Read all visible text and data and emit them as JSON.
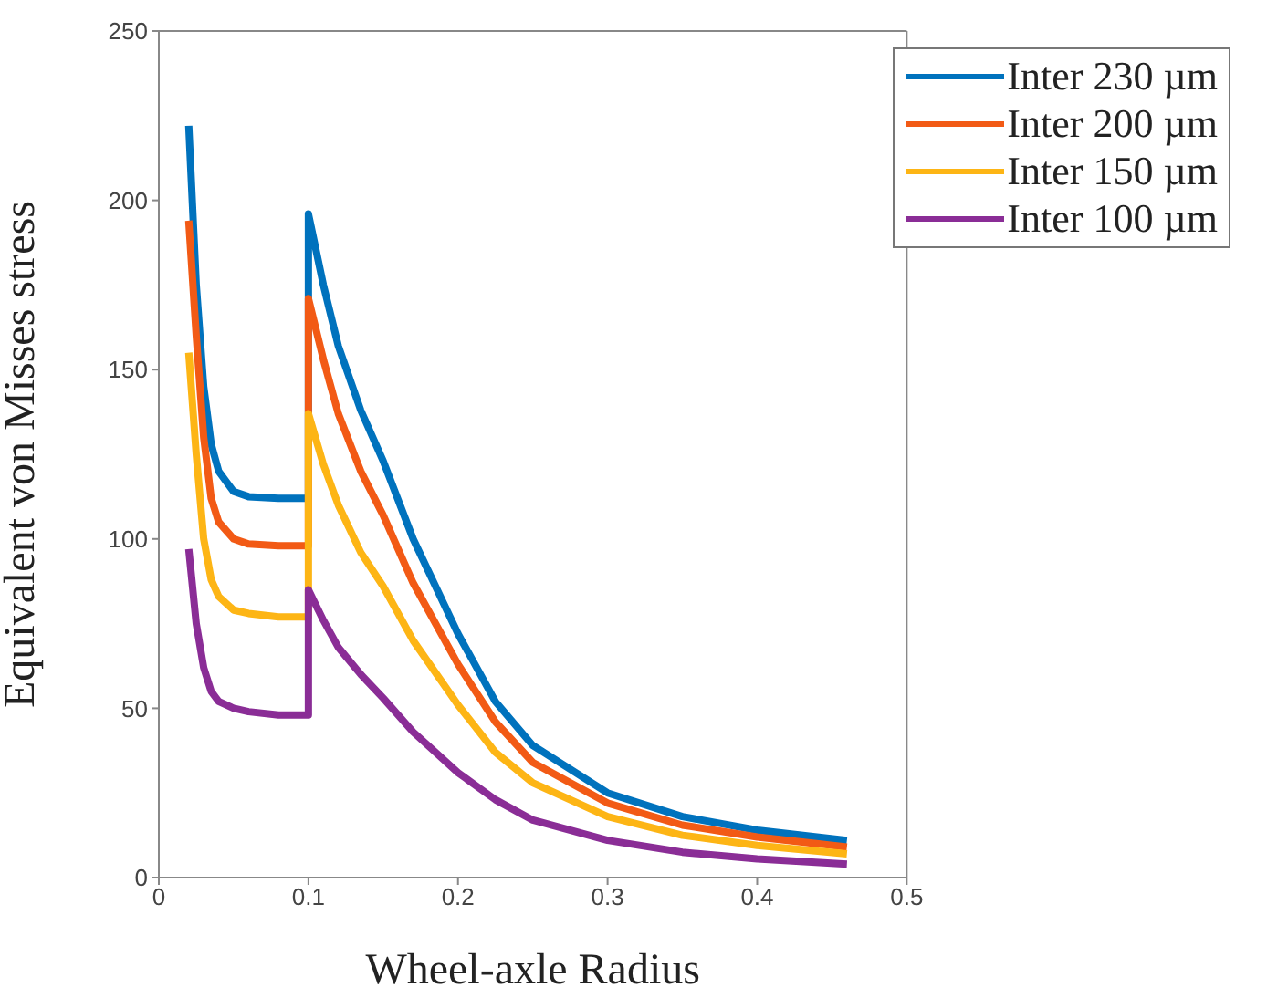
{
  "chart_data": {
    "type": "line",
    "xlabel": "Wheel-axle Radius",
    "ylabel": "Equivalent von Misses stress",
    "x": [
      0.02,
      0.025,
      0.03,
      0.035,
      0.04,
      0.05,
      0.06,
      0.08,
      0.1,
      0.1,
      0.11,
      0.12,
      0.135,
      0.15,
      0.17,
      0.2,
      0.225,
      0.25,
      0.3,
      0.35,
      0.4,
      0.46
    ],
    "series": [
      {
        "name": "Inter 230 µm",
        "color": "#0072bd",
        "values": [
          222,
          175,
          145,
          128,
          120,
          114,
          112.5,
          112,
          112,
          196,
          175,
          157,
          138,
          123,
          100,
          72,
          52,
          39,
          25,
          18,
          14,
          11
        ]
      },
      {
        "name": "Inter 200 µm",
        "color": "#f25a15",
        "values": [
          194,
          160,
          130,
          112,
          105,
          100,
          98.5,
          98,
          98,
          171,
          153,
          137,
          120,
          107,
          87,
          63,
          46,
          34,
          22,
          15.5,
          12,
          9
        ]
      },
      {
        "name": "Inter 150 µm",
        "color": "#fdb515",
        "values": [
          155,
          125,
          100,
          88,
          83,
          79,
          78,
          77,
          77,
          137,
          122,
          110,
          96,
          86,
          70,
          51,
          37,
          28,
          18,
          12.5,
          9.5,
          7
        ]
      },
      {
        "name": "Inter 100 µm",
        "color": "#8a2d96",
        "values": [
          97,
          75,
          62,
          55,
          52,
          50,
          49,
          48,
          48,
          85,
          76,
          68,
          60,
          53,
          43,
          31,
          23,
          17,
          11,
          7.5,
          5.5,
          4
        ]
      }
    ],
    "xlim": [
      0,
      0.5
    ],
    "xticks": [
      0,
      0.1,
      0.2,
      0.3,
      0.4,
      0.5
    ],
    "ylim": [
      0,
      250
    ],
    "yticks": [
      0,
      50,
      100,
      150,
      200,
      250
    ],
    "grid": false,
    "legend": "top right",
    "marker": "none",
    "line_style": "solid"
  }
}
